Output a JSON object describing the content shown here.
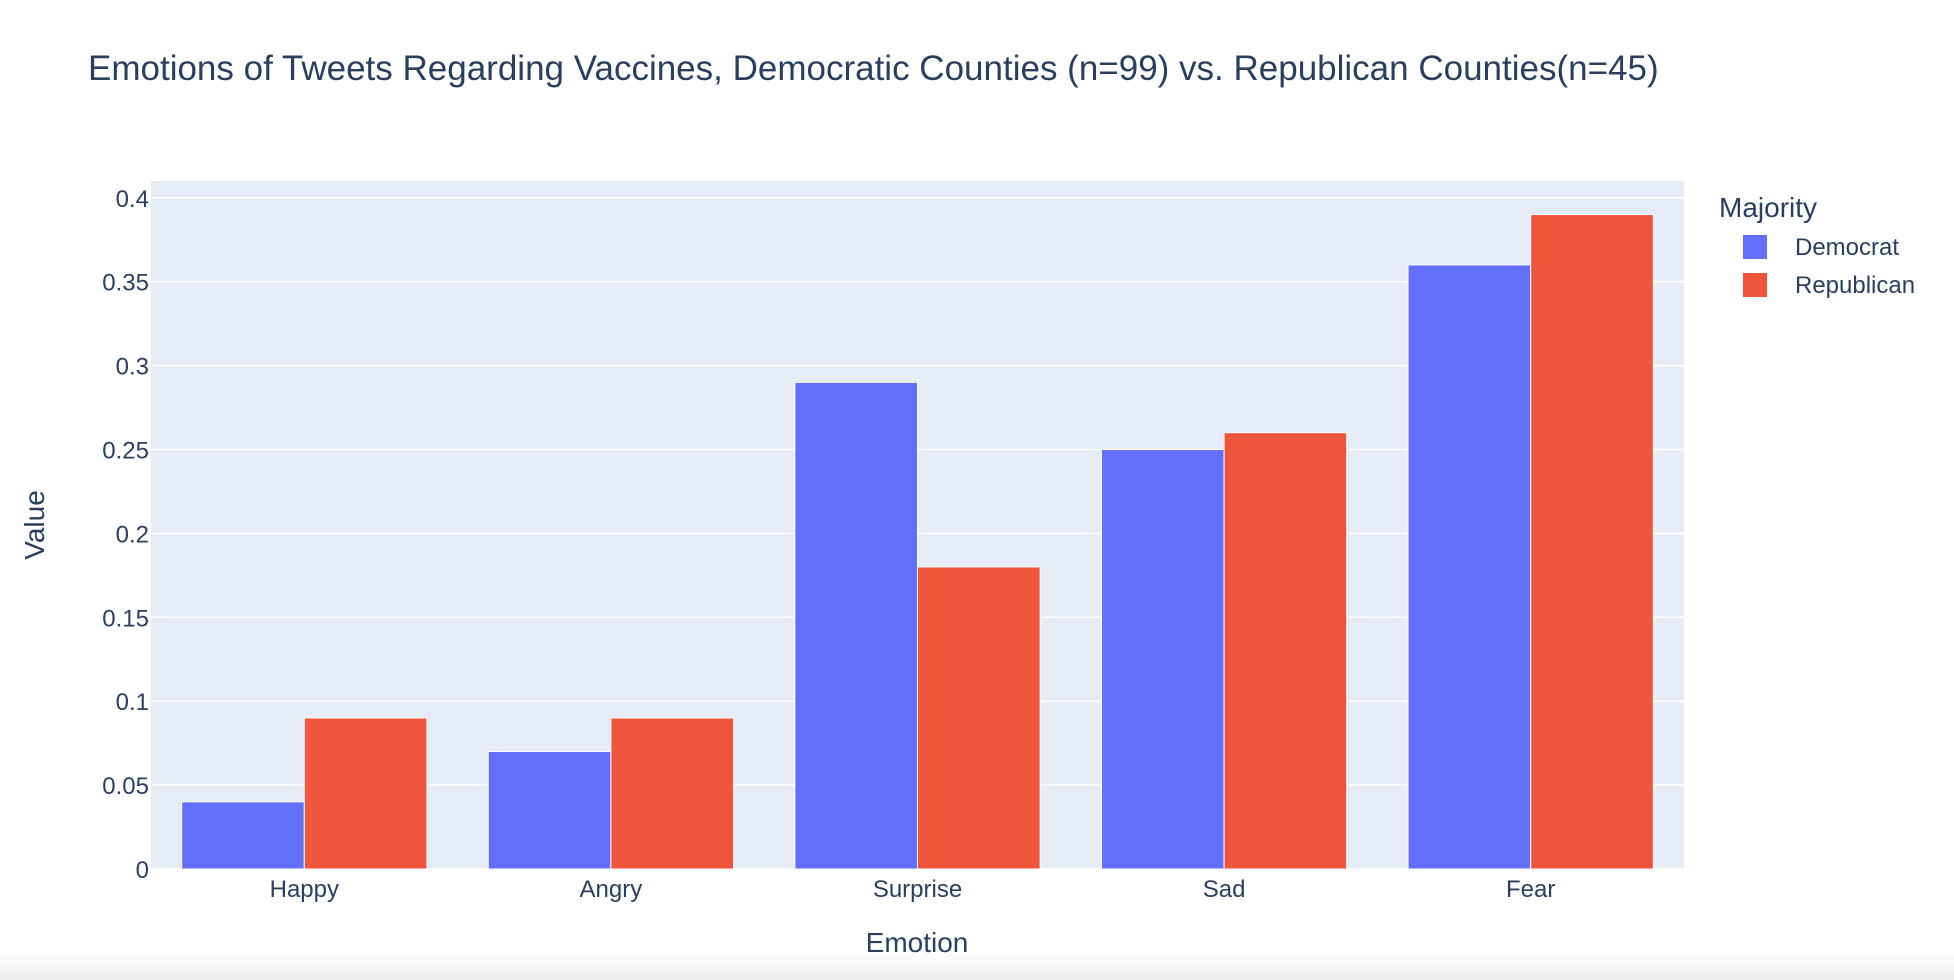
{
  "chart_data": {
    "type": "bar",
    "title": "Emotions of Tweets Regarding Vaccines, Democratic Counties (n=99) vs. Republican Counties(n=45)",
    "xlabel": "Emotion",
    "ylabel": "Value",
    "categories": [
      "Happy",
      "Angry",
      "Surprise",
      "Sad",
      "Fear"
    ],
    "series": [
      {
        "name": "Democrat",
        "color": "#636efa",
        "values": [
          0.04,
          0.07,
          0.29,
          0.25,
          0.36
        ]
      },
      {
        "name": "Republican",
        "color": "#ef553b",
        "values": [
          0.09,
          0.09,
          0.18,
          0.26,
          0.39
        ]
      }
    ],
    "ylim": [
      0,
      0.41
    ],
    "yticks": [
      0,
      0.05,
      0.1,
      0.15,
      0.2,
      0.25,
      0.3,
      0.35,
      0.4
    ],
    "ytick_labels": [
      "0",
      "0.05",
      "0.1",
      "0.15",
      "0.2",
      "0.25",
      "0.3",
      "0.35",
      "0.4"
    ],
    "legend_title": "Majority",
    "legend_position": "top-right",
    "grid": true,
    "plot_background": "#e5ecf6",
    "grid_color": "#ffffff",
    "text_color": "#2a3f5f"
  }
}
